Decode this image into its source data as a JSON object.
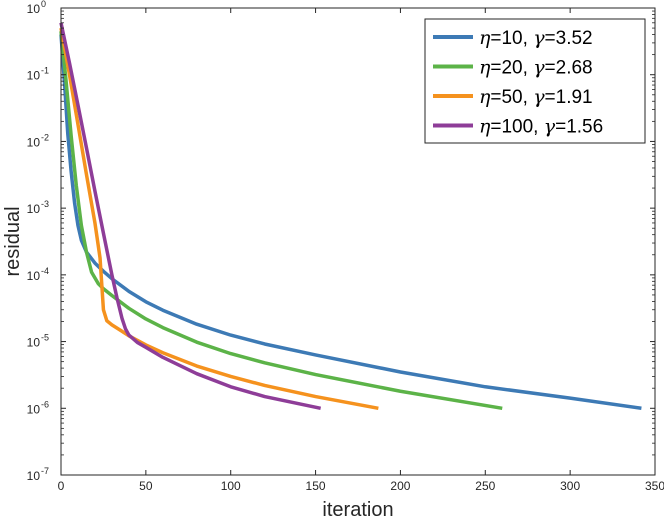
{
  "chart_data": {
    "type": "line",
    "title": "",
    "xlabel": "iteration",
    "ylabel": "residual",
    "xlim": [
      0,
      350
    ],
    "ylim": [
      1e-07,
      1
    ],
    "yscale": "log",
    "grid": false,
    "legend_position": "top-right",
    "x_ticks": [
      0,
      50,
      100,
      150,
      200,
      250,
      300,
      350
    ],
    "x_tick_labels": [
      "0",
      "50",
      "100",
      "150",
      "200",
      "250",
      "300",
      "350"
    ],
    "y_ticks": [
      1e-07,
      1e-06,
      1e-05,
      0.0001,
      0.001,
      0.01,
      0.1,
      1
    ],
    "y_tick_labels": [
      {
        "base": "10",
        "exp": "-7"
      },
      {
        "base": "10",
        "exp": "-6"
      },
      {
        "base": "10",
        "exp": "-5"
      },
      {
        "base": "10",
        "exp": "-4"
      },
      {
        "base": "10",
        "exp": "-3"
      },
      {
        "base": "10",
        "exp": "-2"
      },
      {
        "base": "10",
        "exp": "-1"
      },
      {
        "base": "10",
        "exp": "0"
      }
    ],
    "series": [
      {
        "name": "η=10, γ=3.52",
        "legend_parts": {
          "eta": "η",
          "eta_val": "=10, ",
          "gamma": "γ",
          "gamma_val": "=3.52"
        },
        "color": "#3d7ab5",
        "x": [
          0,
          2,
          4,
          6,
          8,
          10,
          12,
          15,
          20,
          25,
          30,
          40,
          50,
          60,
          80,
          100,
          120,
          150,
          200,
          250,
          300,
          342
        ],
        "y": [
          0.4,
          0.08,
          0.013,
          0.0035,
          0.0012,
          0.00055,
          0.00033,
          0.00022,
          0.00015,
          0.000113,
          8.75e-05,
          5.65e-05,
          3.95e-05,
          2.95e-05,
          1.82e-05,
          1.25e-05,
          9.2e-06,
          6.3e-06,
          3.5e-06,
          2.1e-06,
          1.42e-06,
          1e-06
        ]
      },
      {
        "name": "η=20, γ=2.68",
        "legend_parts": {
          "eta": "η",
          "eta_val": "=20, ",
          "gamma": "γ",
          "gamma_val": "=2.68"
        },
        "color": "#5cb348",
        "x": [
          0,
          3,
          6,
          9,
          12,
          15,
          18,
          22,
          25,
          30,
          40,
          50,
          60,
          80,
          100,
          120,
          150,
          200,
          260
        ],
        "y": [
          0.45,
          0.08,
          0.012,
          0.0022,
          0.00055,
          0.00022,
          0.00011,
          7.35e-05,
          6.2e-05,
          4.9e-05,
          3.15e-05,
          2.18e-05,
          1.62e-05,
          9.8e-06,
          6.6e-06,
          4.8e-06,
          3.2e-06,
          1.8e-06,
          1e-06
        ]
      },
      {
        "name": "η=50, γ=1.91",
        "legend_parts": {
          "eta": "η",
          "eta_val": "=50, ",
          "gamma": "γ",
          "gamma_val": "=1.91"
        },
        "color": "#f5921e",
        "x": [
          0,
          5,
          10,
          15,
          20,
          23,
          25,
          27,
          30,
          35,
          40,
          50,
          60,
          80,
          100,
          120,
          150,
          187
        ],
        "y": [
          0.5,
          0.1,
          0.018,
          0.0032,
          0.0006,
          0.00018,
          3e-05,
          2.05e-05,
          1.78e-05,
          1.48e-05,
          1.22e-05,
          8.9e-06,
          6.8e-06,
          4.3e-06,
          3e-06,
          2.2e-06,
          1.5e-06,
          1e-06
        ]
      },
      {
        "name": "η=100, γ=1.56",
        "legend_parts": {
          "eta": "η",
          "eta_val": "=100, ",
          "gamma": "γ",
          "gamma_val": "=1.56"
        },
        "color": "#8e3d98",
        "x": [
          0,
          5,
          10,
          15,
          20,
          25,
          30,
          33,
          36,
          38,
          40,
          45,
          50,
          60,
          80,
          100,
          120,
          153
        ],
        "y": [
          0.6,
          0.15,
          0.035,
          0.008,
          0.0018,
          0.00042,
          0.0001,
          4.5e-05,
          2.2e-05,
          1.55e-05,
          1.25e-05,
          9.7e-06,
          8.2e-06,
          5.8e-06,
          3.3e-06,
          2.1e-06,
          1.5e-06,
          1e-06
        ]
      }
    ]
  }
}
